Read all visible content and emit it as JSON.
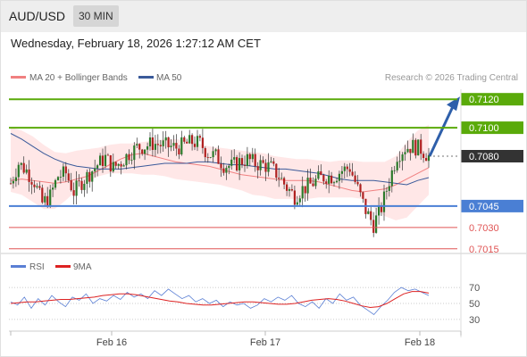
{
  "header": {
    "pair": "AUD/USD",
    "timeframe": "30 MIN",
    "datetime": "Wednesday, February 18, 2026 1:27:12 AM CET"
  },
  "legend": {
    "ma20_label": "MA 20 + Bollinger Bands",
    "ma50_label": "MA 50",
    "credit": "Research © 2026 Trading Central",
    "rsi_label": "RSI",
    "rsi_ma_label": "9MA"
  },
  "colors": {
    "resistance": "#5aaa0a",
    "support": "#4a7fd4",
    "minor_support": "#e05555",
    "last_price": "#333333",
    "arrow": "#2e5faa",
    "bollinger_fill": "#ffe4e4",
    "ma20": "#f08080",
    "ma50": "#3a5a9a",
    "rsi": "#5a7fd4",
    "rsi_ma": "#dd2222",
    "candle_up": "#2b7a2b",
    "candle_down": "#b02020"
  },
  "chart_data": {
    "type": "candlestick",
    "x_ticks": [
      "Feb 16",
      "Feb 17",
      "Feb 18"
    ],
    "y_range": [
      0.7008,
      0.7127
    ],
    "levels": [
      {
        "value": 0.712,
        "label": "0.7120",
        "kind": "resistance"
      },
      {
        "value": 0.71,
        "label": "0.7100",
        "kind": "resistance"
      },
      {
        "value": 0.708,
        "label": "0.7080",
        "kind": "last_price"
      },
      {
        "value": 0.7045,
        "label": "0.7045",
        "kind": "support"
      },
      {
        "value": 0.703,
        "label": "0.7030",
        "kind": "minor_support"
      },
      {
        "value": 0.7015,
        "label": "0.7015",
        "kind": "minor_support"
      }
    ],
    "close_path": [
      0.7061,
      0.7075,
      0.707,
      0.7062,
      0.7047,
      0.7052,
      0.7066,
      0.7068,
      0.7055,
      0.7062,
      0.7068,
      0.7074,
      0.7079,
      0.7072,
      0.7076,
      0.7082,
      0.7086,
      0.7087,
      0.7089,
      0.7088,
      0.7087,
      0.7086,
      0.7088,
      0.709,
      0.7089,
      0.7082,
      0.708,
      0.7074,
      0.7073,
      0.7076,
      0.7078,
      0.7075,
      0.7074,
      0.7072,
      0.7066,
      0.7058,
      0.7052,
      0.7057,
      0.706,
      0.7064,
      0.7066,
      0.7066,
      0.707,
      0.7072,
      0.7057,
      0.7042,
      0.7032,
      0.7044,
      0.7063,
      0.7081,
      0.7086,
      0.7087,
      0.7085,
      0.708
    ],
    "ma20": [
      0.7063,
      0.7064,
      0.7063,
      0.7062,
      0.7061,
      0.7062,
      0.7064,
      0.7066,
      0.707,
      0.7074,
      0.7078,
      0.7081,
      0.7082,
      0.708,
      0.7078,
      0.7076,
      0.7075,
      0.7074,
      0.7073,
      0.7071,
      0.7069,
      0.7067,
      0.7066,
      0.7065,
      0.7064,
      0.7063,
      0.7063,
      0.7063,
      0.7062,
      0.706,
      0.7058,
      0.7056,
      0.7055,
      0.7056,
      0.7057,
      0.706,
      0.7064,
      0.7068,
      0.7072
    ],
    "bollinger_upper": [
      0.71,
      0.7098,
      0.7094,
      0.7088,
      0.7083,
      0.7082,
      0.7084,
      0.7085,
      0.7086,
      0.7088,
      0.7089,
      0.7089,
      0.709,
      0.7091,
      0.7092,
      0.7092,
      0.7091,
      0.7089,
      0.7087,
      0.7086,
      0.7085,
      0.7084,
      0.7083,
      0.7082,
      0.708,
      0.7079,
      0.7078,
      0.7078,
      0.7077,
      0.7076,
      0.7077,
      0.7077,
      0.7076,
      0.7076,
      0.7076,
      0.708,
      0.709,
      0.7098,
      0.7102
    ],
    "bollinger_lower": [
      0.7055,
      0.7053,
      0.7048,
      0.7043,
      0.7043,
      0.7049,
      0.7056,
      0.7062,
      0.7066,
      0.7068,
      0.7068,
      0.7068,
      0.7067,
      0.7067,
      0.7066,
      0.7064,
      0.7063,
      0.7062,
      0.7061,
      0.706,
      0.7058,
      0.7056,
      0.7053,
      0.7052,
      0.705,
      0.705,
      0.705,
      0.705,
      0.7051,
      0.7051,
      0.7051,
      0.7051,
      0.705,
      0.7044,
      0.7038,
      0.7035,
      0.7037,
      0.7045,
      0.7053
    ],
    "ma50": [
      0.7096,
      0.7092,
      0.7087,
      0.7082,
      0.7078,
      0.7075,
      0.7073,
      0.7072,
      0.7071,
      0.7071,
      0.7071,
      0.7072,
      0.7073,
      0.7074,
      0.7075,
      0.7075,
      0.7075,
      0.7076,
      0.7076,
      0.7075,
      0.7074,
      0.7074,
      0.7073,
      0.7072,
      0.7071,
      0.7071,
      0.707,
      0.7069,
      0.7068,
      0.7066,
      0.7064,
      0.7063,
      0.7063,
      0.7063,
      0.7062,
      0.7061,
      0.706,
      0.7063,
      0.7065
    ],
    "rsi_panel": {
      "y_range": [
        22,
        78
      ],
      "ticks": [
        70,
        50,
        30
      ],
      "rsi": [
        52,
        48,
        58,
        44,
        56,
        48,
        60,
        52,
        46,
        58,
        54,
        62,
        50,
        56,
        53,
        60,
        55,
        64,
        58,
        62,
        56,
        66,
        60,
        68,
        62,
        56,
        60,
        52,
        56,
        50,
        54,
        46,
        52,
        48,
        50,
        44,
        48,
        56,
        52,
        58,
        54,
        60,
        50,
        46,
        52,
        44,
        56,
        50,
        62,
        54,
        58,
        48,
        42,
        36,
        46,
        54,
        64,
        70,
        66,
        68,
        64,
        60
      ],
      "rsi_ma": [
        50,
        51,
        52,
        52,
        53,
        54,
        55,
        55,
        56,
        57,
        58,
        60,
        61,
        62,
        62,
        61,
        59,
        57,
        55,
        53,
        52,
        50,
        49,
        48,
        48,
        49,
        50,
        51,
        52,
        52,
        51,
        50,
        49,
        49,
        50,
        52,
        54,
        55,
        56,
        55,
        53,
        50,
        47,
        45,
        46,
        50,
        56,
        62,
        65,
        65,
        63
      ]
    }
  }
}
